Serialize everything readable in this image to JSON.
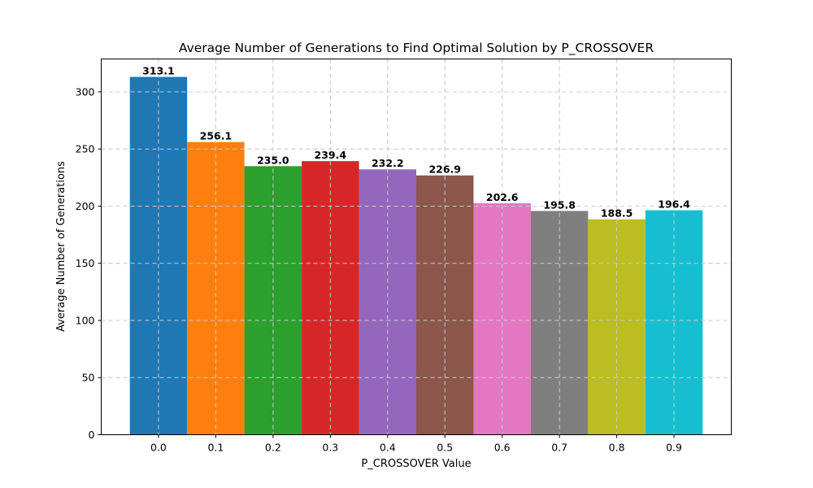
{
  "chart_data": {
    "type": "bar",
    "title": "Average Number of Generations to Find Optimal Solution by P_CROSSOVER",
    "xlabel": "P_CROSSOVER Value",
    "ylabel": "Average Number of Generations",
    "categories": [
      "0.0",
      "0.1",
      "0.2",
      "0.3",
      "0.4",
      "0.5",
      "0.6",
      "0.7",
      "0.8",
      "0.9"
    ],
    "values": [
      313.1,
      256.1,
      235.0,
      239.4,
      232.2,
      226.9,
      202.6,
      195.8,
      188.5,
      196.4
    ],
    "value_labels": [
      "313.1",
      "256.1",
      "235.0",
      "239.4",
      "232.2",
      "226.9",
      "202.6",
      "195.8",
      "188.5",
      "196.4"
    ],
    "colors": [
      "#1f77b4",
      "#ff7f0e",
      "#2ca02c",
      "#d62728",
      "#9467bd",
      "#8c564b",
      "#e377c2",
      "#7f7f7f",
      "#bcbd22",
      "#17becf"
    ],
    "ylim": [
      0,
      328.8
    ],
    "yticks": [
      0,
      50,
      100,
      150,
      200,
      250,
      300
    ],
    "grid": true
  }
}
